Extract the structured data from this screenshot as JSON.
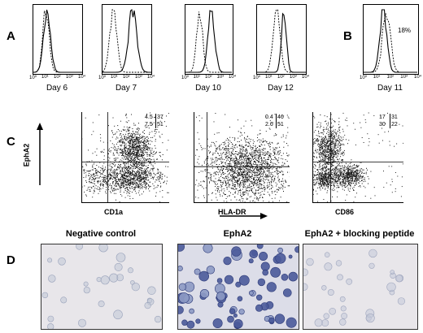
{
  "panels": {
    "A": "A",
    "B": "B",
    "C": "C",
    "D": "D"
  },
  "histograms": [
    {
      "label": "Day 6"
    },
    {
      "label": "Day 7"
    },
    {
      "label": "Day 10"
    },
    {
      "label": "Day 12"
    },
    {
      "label": "Day 11",
      "percent": "18%"
    }
  ],
  "histogram_ticks": [
    "10⁰",
    "10¹",
    "10²",
    "10³",
    "10⁴"
  ],
  "scatter": {
    "y_label": "EphA2",
    "plots": [
      {
        "x_label": "CD1a",
        "q": [
          "4.5",
          "37",
          "7.5",
          "51"
        ]
      },
      {
        "x_label": "HLA-DR",
        "q": [
          "0.4",
          "46",
          "2.6",
          "51"
        ]
      },
      {
        "x_label": "CD86",
        "q": [
          "17",
          "31",
          "30",
          "22"
        ]
      }
    ]
  },
  "microscopy": [
    {
      "title": "Negative control"
    },
    {
      "title": "EphA2"
    },
    {
      "title": "EphA2 + blocking peptide"
    }
  ]
}
